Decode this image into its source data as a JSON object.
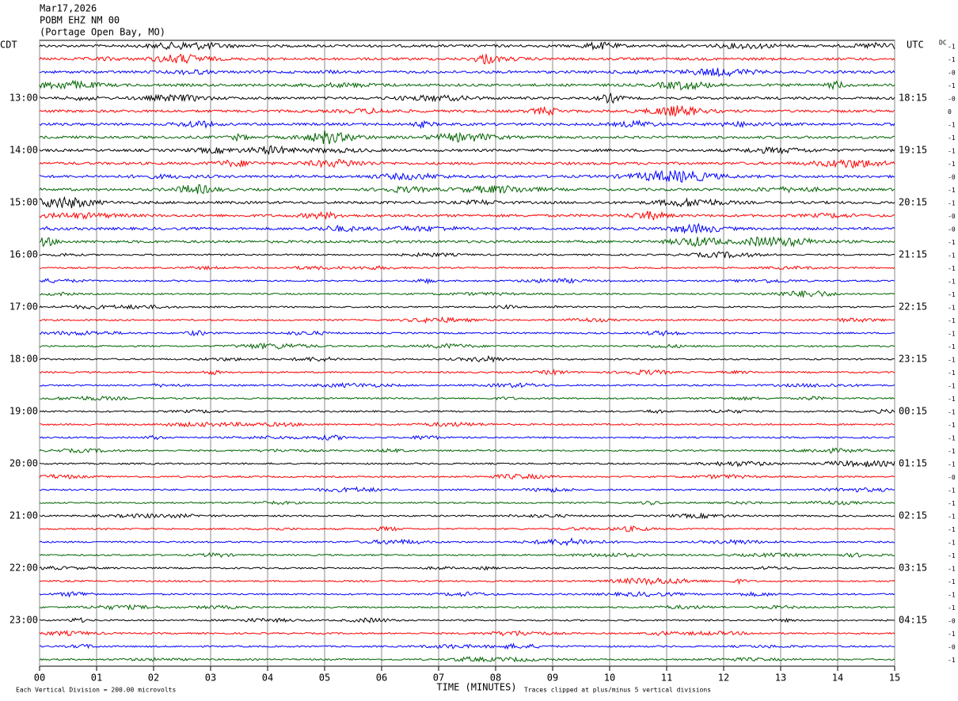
{
  "chart_data": {
    "type": "helicorder",
    "header": [
      "Mar17,2026",
      "POBM EHZ NM 00",
      "(Portage Open Bay, MO)"
    ],
    "left_zone": "CDT",
    "right_zone": "UTC",
    "dc_title": "DC",
    "left_labels": [
      null,
      null,
      null,
      null,
      "13:00",
      null,
      null,
      null,
      "14:00",
      null,
      null,
      null,
      "15:00",
      null,
      null,
      null,
      "16:00",
      null,
      null,
      null,
      "17:00",
      null,
      null,
      null,
      "18:00",
      null,
      null,
      null,
      "19:00",
      null,
      null,
      null,
      "20:00",
      null,
      null,
      null,
      "21:00",
      null,
      null,
      null,
      "22:00",
      null,
      null,
      null,
      "23:00",
      null,
      null,
      null
    ],
    "right_labels": [
      null,
      null,
      null,
      null,
      "18:15",
      null,
      null,
      null,
      "19:15",
      null,
      null,
      null,
      "20:15",
      null,
      null,
      null,
      "21:15",
      null,
      null,
      null,
      "22:15",
      null,
      null,
      null,
      "23:15",
      null,
      null,
      null,
      "00:15",
      null,
      null,
      null,
      "01:15",
      null,
      null,
      null,
      "02:15",
      null,
      null,
      null,
      "03:15",
      null,
      null,
      null,
      "04:15",
      null,
      null,
      null
    ],
    "dc_labels": [
      "-1",
      "-1",
      "-0",
      "-1",
      "-0",
      "0",
      "-1",
      "-1",
      "-1",
      "-1",
      "-0",
      "-1",
      "-1",
      "-0",
      "-0",
      "-1",
      "-1",
      "-1",
      "-1",
      "-1",
      "-1",
      "-1",
      "-1",
      "-1",
      "-1",
      "-1",
      "-1",
      "-1",
      "-1",
      "-1",
      "-1",
      "-1",
      "-1",
      "-0",
      "-1",
      "-1",
      "-1",
      "-1",
      "-1",
      "-1",
      "-1",
      "-1",
      "-1",
      "-1",
      "-0",
      "-1",
      "-0",
      "-1"
    ],
    "trace_colors": [
      "#000000",
      "#ff0000",
      "#0000ff",
      "#006400"
    ],
    "xlabel": "TIME (MINUTES)",
    "xlim": [
      0,
      15
    ],
    "xticks": [
      {
        "value": 0,
        "label": "00"
      },
      {
        "value": 1,
        "label": "01"
      },
      {
        "value": 2,
        "label": "02"
      },
      {
        "value": 3,
        "label": "03"
      },
      {
        "value": 4,
        "label": "04"
      },
      {
        "value": 5,
        "label": "05"
      },
      {
        "value": 6,
        "label": "06"
      },
      {
        "value": 7,
        "label": "07"
      },
      {
        "value": 8,
        "label": "08"
      },
      {
        "value": 9,
        "label": "09"
      },
      {
        "value": 10,
        "label": "10"
      },
      {
        "value": 11,
        "label": "11"
      },
      {
        "value": 12,
        "label": "12"
      },
      {
        "value": 13,
        "label": "13"
      },
      {
        "value": 14,
        "label": "14"
      },
      15
    ],
    "footer_left": "Each Vertical Division =  200.00 microvolts",
    "footer_right": "Traces clipped at plus/minus 5 vertical divisions"
  }
}
